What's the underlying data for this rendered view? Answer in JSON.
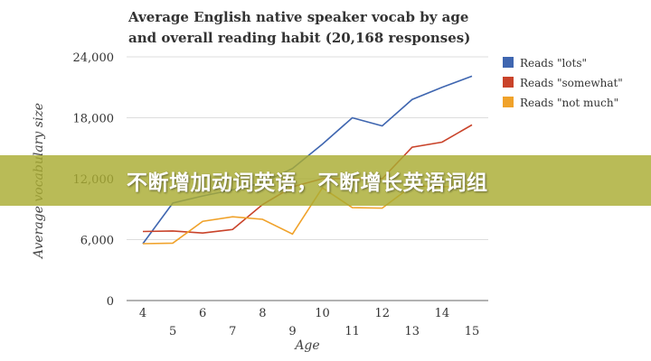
{
  "chart_data": {
    "type": "line",
    "title_line1": "Average English native speaker vocab by age",
    "title_line2": "and overall reading habit (20,168 responses)",
    "xlabel": "Age",
    "ylabel": "Average vocabulary size",
    "x": [
      4,
      5,
      6,
      7,
      8,
      9,
      10,
      11,
      12,
      13,
      14,
      15
    ],
    "ylim": [
      0,
      24000
    ],
    "yticks": [
      0,
      6000,
      12000,
      18000,
      24000
    ],
    "ytick_labels": [
      "0",
      "6,000",
      "12,000",
      "18,000",
      "24,000"
    ],
    "grid": true,
    "legend": "right",
    "series": [
      {
        "name": "Reads \"lots\"",
        "color": "#3f66b0",
        "values": [
          5600,
          9600,
          10300,
          10900,
          11600,
          13000,
          15400,
          18000,
          17200,
          19800,
          21000,
          22100
        ]
      },
      {
        "name": "Reads \"somewhat\"",
        "color": "#c9432a",
        "values": [
          6800,
          6850,
          6650,
          7000,
          9450,
          11200,
          12000,
          12000,
          12000,
          15100,
          15600,
          17300
        ]
      },
      {
        "name": "Reads \"not much\"",
        "color": "#f0a22a",
        "values": [
          5600,
          5650,
          7800,
          8250,
          8000,
          6550,
          11100,
          9150,
          9100,
          11300,
          11200,
          11300
        ]
      }
    ]
  },
  "banner": {
    "text": "不断增加动词英语，不断增长英语词组",
    "color": "#aaac32"
  }
}
